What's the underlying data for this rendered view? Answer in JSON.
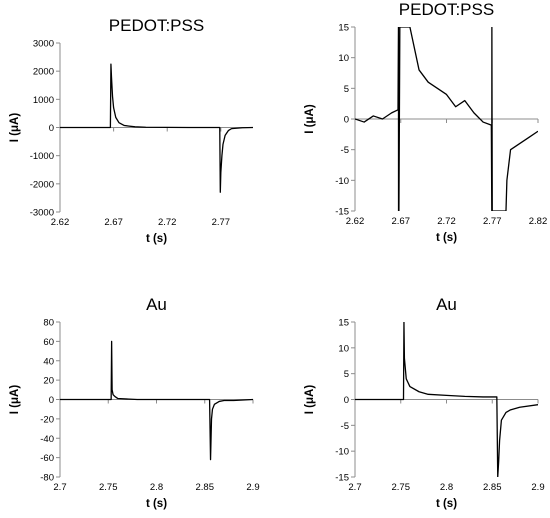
{
  "chart_data": [
    {
      "type": "line",
      "title": "PEDOT:PSS",
      "xlabel": "t (s)",
      "ylabel": "I (μA)",
      "xlim": [
        2.62,
        2.8
      ],
      "ylim": [
        -3000,
        3000
      ],
      "xticks": [
        2.62,
        2.67,
        2.72,
        2.77
      ],
      "xtick_labels": [
        "2.62",
        "2.67",
        "2.72",
        "2.77"
      ],
      "yticks": [
        -3000,
        -2000,
        -1000,
        0,
        1000,
        2000,
        3000
      ],
      "ytick_labels": [
        "-3000",
        "-2000",
        "-1000",
        "0",
        "1000",
        "2000",
        "3000"
      ],
      "series": [
        {
          "x": [
            2.62,
            2.666,
            2.667,
            2.6675,
            2.668,
            2.669,
            2.67,
            2.672,
            2.675,
            2.68,
            2.69,
            2.7,
            2.72,
            2.74,
            2.76,
            2.769,
            2.7695,
            2.77,
            2.771,
            2.772,
            2.774,
            2.777,
            2.78,
            2.79,
            2.8
          ],
          "y": [
            0,
            0,
            0,
            2250,
            1800,
            1100,
            700,
            360,
            170,
            70,
            25,
            10,
            5,
            0,
            0,
            0,
            -2300,
            -1600,
            -1000,
            -600,
            -280,
            -110,
            -40,
            -10,
            0
          ]
        }
      ],
      "grid": false,
      "legend": "none"
    },
    {
      "type": "line",
      "title": "PEDOT:PSS",
      "xlabel": "t (s)",
      "ylabel": "I (μA)",
      "xlim": [
        2.62,
        2.82
      ],
      "ylim": [
        -15,
        15
      ],
      "xticks": [
        2.62,
        2.67,
        2.72,
        2.77,
        2.82
      ],
      "xtick_labels": [
        "2.62",
        "2.67",
        "2.72",
        "2.77",
        "2.82"
      ],
      "yticks": [
        -15,
        -10,
        -5,
        0,
        5,
        10,
        15
      ],
      "ytick_labels": [
        "-15",
        "-10",
        "-5",
        "0",
        "5",
        "10",
        "15"
      ],
      "series": [
        {
          "x": [
            2.62,
            2.63,
            2.64,
            2.65,
            2.66,
            2.667,
            2.6675,
            2.6676,
            2.668,
            2.669,
            2.68,
            2.69,
            2.7,
            2.71,
            2.72,
            2.73,
            2.74,
            2.75,
            2.76,
            2.769,
            2.7695,
            2.7696,
            2.77,
            2.785,
            2.786,
            2.79,
            2.8,
            2.81,
            2.82
          ],
          "y": [
            0,
            -0.5,
            0.5,
            0,
            1,
            1.5,
            15,
            -15,
            -15,
            15,
            15,
            8,
            6,
            5,
            4,
            2,
            3,
            1,
            -0.5,
            -1,
            -15,
            15,
            -15,
            -15,
            -10,
            -5,
            -4,
            -3,
            -2
          ]
        }
      ],
      "grid": false,
      "legend": "none"
    },
    {
      "type": "line",
      "title": "Au",
      "xlabel": "t (s)",
      "ylabel": "I (μA)",
      "xlim": [
        2.7,
        2.9
      ],
      "ylim": [
        -80,
        80
      ],
      "xticks": [
        2.7,
        2.75,
        2.8,
        2.85,
        2.9
      ],
      "xtick_labels": [
        "2.7",
        "2.75",
        "2.8",
        "2.85",
        "2.9"
      ],
      "yticks": [
        -80,
        -60,
        -40,
        -20,
        0,
        20,
        40,
        60,
        80
      ],
      "ytick_labels": [
        "-80",
        "-60",
        "-40",
        "-20",
        "0",
        "20",
        "40",
        "60",
        "80"
      ],
      "series": [
        {
          "x": [
            2.7,
            2.72,
            2.74,
            2.753,
            2.7535,
            2.754,
            2.755,
            2.757,
            2.76,
            2.78,
            2.8,
            2.82,
            2.84,
            2.855,
            2.856,
            2.857,
            2.858,
            2.86,
            2.865,
            2.87,
            2.88,
            2.9
          ],
          "y": [
            0,
            0,
            0,
            0,
            60,
            10,
            5,
            3,
            1,
            0,
            0,
            0,
            0,
            0,
            -62,
            -20,
            -10,
            -5,
            -2,
            -1,
            -1,
            0
          ]
        }
      ],
      "grid": false,
      "legend": "none"
    },
    {
      "type": "line",
      "title": "Au",
      "xlabel": "t (s)",
      "ylabel": "I (μA)",
      "xlim": [
        2.7,
        2.9
      ],
      "ylim": [
        -15,
        15
      ],
      "xticks": [
        2.7,
        2.75,
        2.8,
        2.85,
        2.9
      ],
      "xtick_labels": [
        "2.7",
        "2.75",
        "2.8",
        "2.85",
        "2.9"
      ],
      "yticks": [
        -15,
        -10,
        -5,
        0,
        5,
        10,
        15
      ],
      "ytick_labels": [
        "-15",
        "-10",
        "-5",
        "0",
        "5",
        "10",
        "15"
      ],
      "series": [
        {
          "x": [
            2.7,
            2.72,
            2.74,
            2.753,
            2.7535,
            2.754,
            2.756,
            2.76,
            2.77,
            2.78,
            2.8,
            2.82,
            2.84,
            2.855,
            2.856,
            2.857,
            2.858,
            2.86,
            2.865,
            2.87,
            2.88,
            2.9
          ],
          "y": [
            0,
            0,
            0,
            0,
            15,
            8,
            4,
            2.5,
            1.5,
            1,
            0.8,
            0.6,
            0.5,
            0.5,
            -15,
            -12,
            -8,
            -4,
            -2.5,
            -2,
            -1.5,
            -1
          ]
        }
      ],
      "grid": false,
      "legend": "none"
    }
  ]
}
